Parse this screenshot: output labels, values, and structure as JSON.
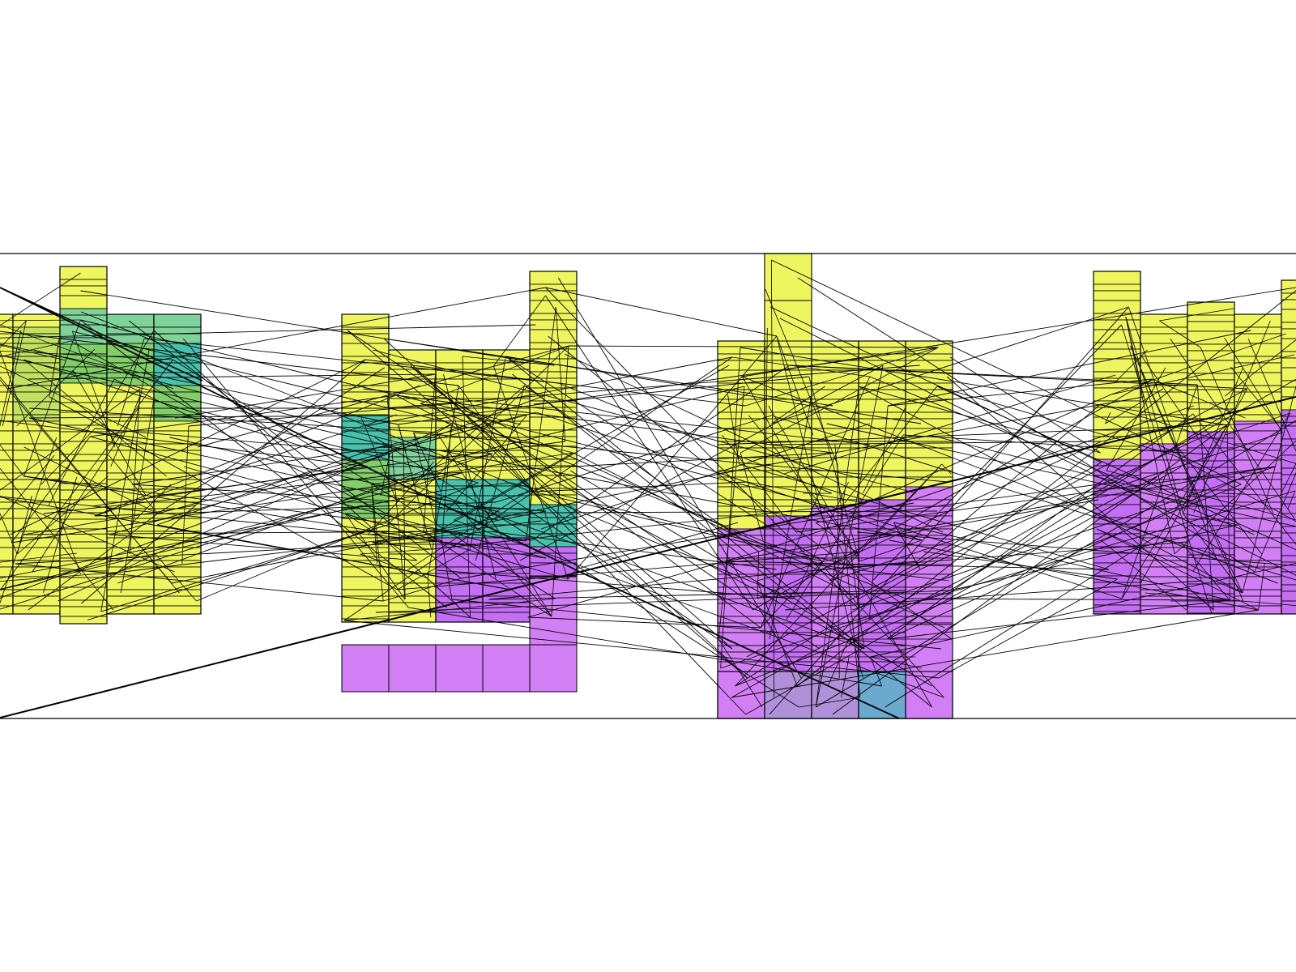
{
  "diagram": {
    "type": "cell-grid-network",
    "background": "#ffffff",
    "palette": {
      "yellow": "#eef55f",
      "lime": "#c3e160",
      "green": "#82cf6a",
      "mint": "#7fd39a",
      "teal": "#48c1ad",
      "blue": "#6ba9cf",
      "lilac": "#b090d8",
      "violet": "#c46ef3",
      "lavender": "#d27ff6",
      "stroke": "#000000"
    },
    "panels": [
      {
        "name": "panel-1",
        "columns": 5,
        "top_color": "yellow",
        "bottom_color": "yellow",
        "highlight_colors": [
          "lime",
          "mint",
          "teal",
          "green"
        ]
      },
      {
        "name": "panel-2",
        "columns": 5,
        "top_color": "yellow",
        "bottom_color": "violet",
        "highlight_colors": [
          "teal",
          "green",
          "mint"
        ]
      },
      {
        "name": "panel-3",
        "columns": 5,
        "top_color": "yellow",
        "bottom_color": "violet",
        "highlight_colors": [
          "lilac",
          "blue"
        ]
      },
      {
        "name": "panel-4",
        "columns": 5,
        "top_color": "yellow",
        "bottom_color": "violet",
        "highlight_colors": []
      }
    ]
  }
}
